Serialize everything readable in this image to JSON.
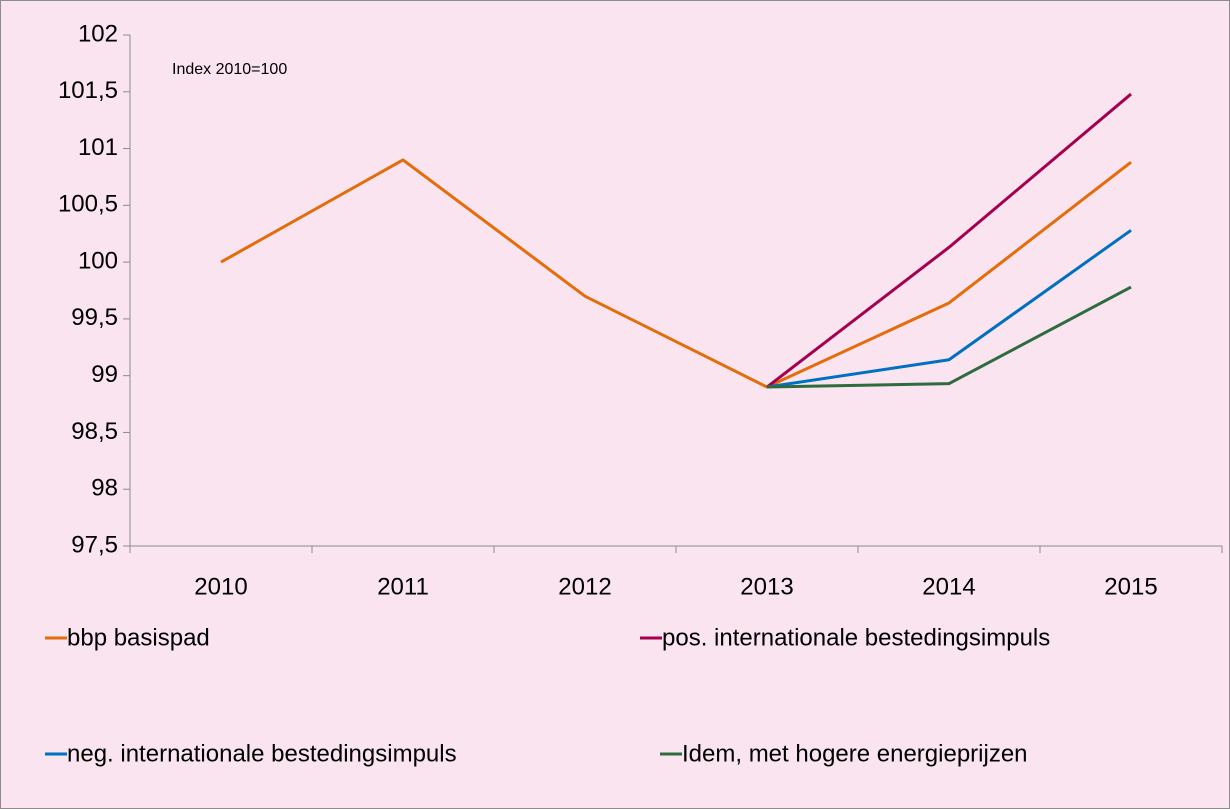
{
  "chart_data": {
    "type": "line",
    "annotation": "Index 2010=100",
    "categories": [
      "2010",
      "2011",
      "2012",
      "2013",
      "2014",
      "2015"
    ],
    "series": [
      {
        "name": "bbp basispad",
        "color": "#e46c0a",
        "values": [
          100,
          100.9,
          99.7,
          98.9,
          99.64,
          100.88
        ]
      },
      {
        "name": "pos. internationale bestedingsimpuls",
        "color": "#a50050",
        "values": [
          null,
          null,
          null,
          98.9,
          100.13,
          101.48
        ]
      },
      {
        "name": "neg. internationale bestedingsimpuls",
        "color": "#0070c0",
        "values": [
          null,
          null,
          null,
          98.9,
          99.14,
          100.28
        ]
      },
      {
        "name": "Idem, met hogere energieprijzen",
        "color": "#2e6b3f",
        "values": [
          null,
          null,
          null,
          98.9,
          98.93,
          99.78
        ]
      }
    ],
    "ylim": [
      97.5,
      102
    ],
    "yticks": [
      {
        "value": 97.5,
        "label": "97,5"
      },
      98,
      {
        "value": 98.5,
        "label": "98,5"
      },
      99,
      {
        "value": 99.5,
        "label": "99,5"
      },
      100,
      {
        "value": 100.5,
        "label": "100,5"
      },
      101,
      {
        "value": 101.5,
        "label": "101,5"
      },
      102
    ],
    "grid": false,
    "legend": "bottom"
  }
}
